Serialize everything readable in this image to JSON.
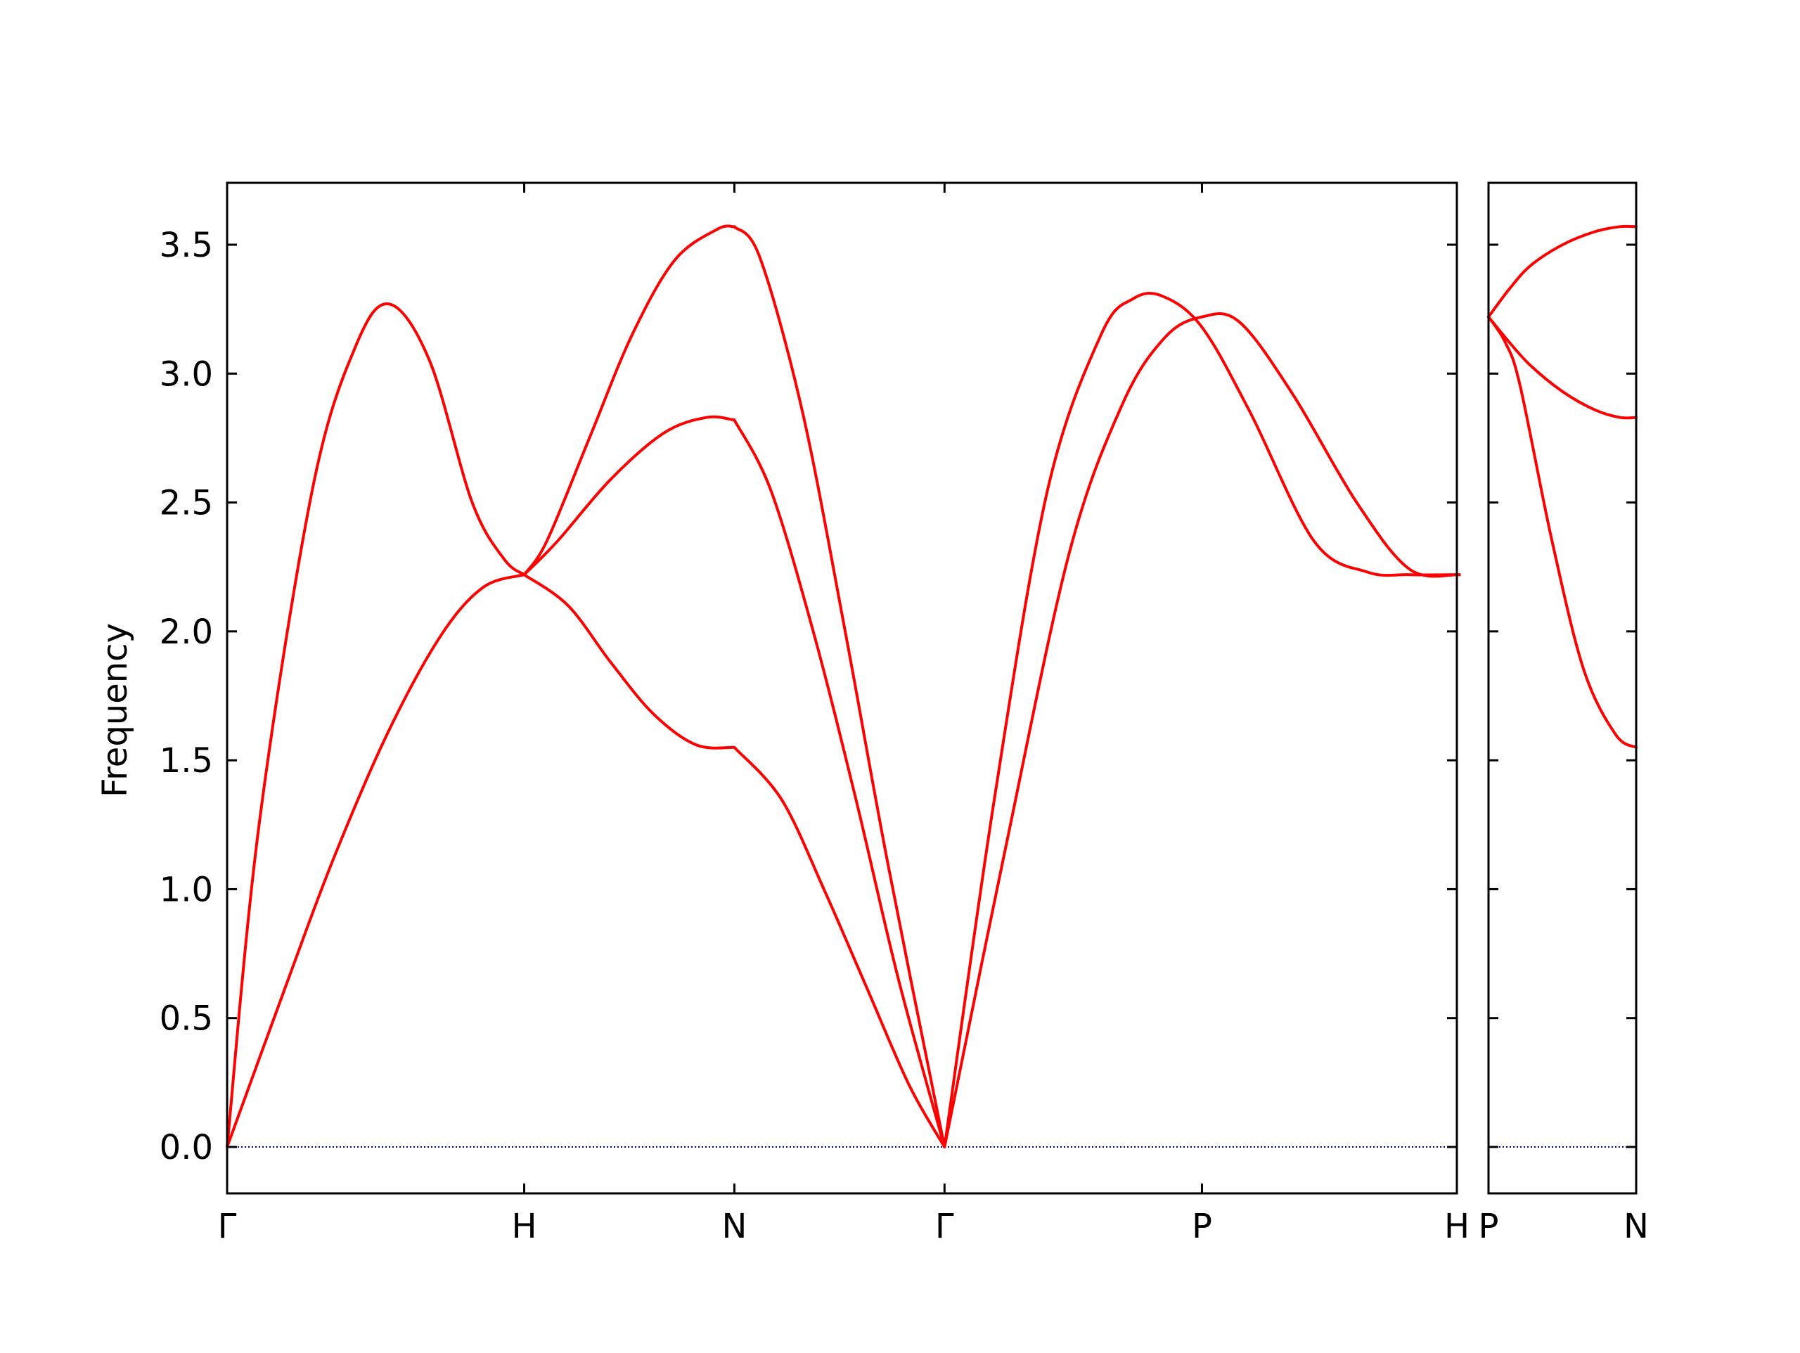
{
  "chart_data": {
    "type": "line",
    "title": "",
    "ylabel": "Frequency",
    "xlabel": "",
    "ylim": [
      -0.18,
      3.74
    ],
    "yticks": [
      0.0,
      0.5,
      1.0,
      1.5,
      2.0,
      2.5,
      3.0,
      3.5
    ],
    "ytick_labels": [
      "0.0",
      "0.5",
      "1.0",
      "1.5",
      "2.0",
      "2.5",
      "3.0",
      "3.5"
    ],
    "grid": false,
    "line_color": "#ff0000",
    "zero_line_color": "#00008b",
    "panels": [
      {
        "xlim": [
          0,
          5.77
        ],
        "xticks": [
          0,
          1.394,
          2.38,
          3.366,
          4.574,
          5.782
        ],
        "xtick_labels": [
          "Γ",
          "H",
          "N",
          "Γ",
          "P",
          "H"
        ],
        "series": [
          {
            "x": [
              0,
              0.3,
              0.5,
              0.75,
              1.0,
              1.2,
              1.394
            ],
            "values": [
              0.0,
              0.68,
              1.12,
              1.6,
              1.98,
              2.17,
              2.22
            ]
          },
          {
            "x": [
              0,
              0.15,
              0.4,
              0.6,
              0.76,
              0.95,
              1.15,
              1.3,
              1.394
            ],
            "values": [
              0.0,
              1.25,
              2.55,
              3.1,
              3.27,
              3.05,
              2.5,
              2.28,
              2.22
            ]
          },
          {
            "x": [
              1.394,
              1.6,
              1.8,
              2.0,
              2.2,
              2.38
            ],
            "values": [
              2.22,
              2.1,
              1.88,
              1.68,
              1.56,
              1.55
            ]
          },
          {
            "x": [
              1.394,
              1.55,
              1.8,
              2.05,
              2.25,
              2.38
            ],
            "values": [
              2.22,
              2.35,
              2.59,
              2.77,
              2.83,
              2.82
            ]
          },
          {
            "x": [
              1.394,
              1.5,
              1.7,
              1.9,
              2.1,
              2.3,
              2.38
            ],
            "values": [
              2.22,
              2.35,
              2.75,
              3.15,
              3.44,
              3.56,
              3.57
            ]
          },
          {
            "x": [
              2.38,
              2.6,
              2.8,
              3.0,
              3.2,
              3.366
            ],
            "values": [
              1.55,
              1.35,
              1.0,
              0.62,
              0.24,
              0.0
            ]
          },
          {
            "x": [
              2.38,
              2.55,
              2.75,
              2.95,
              3.15,
              3.366
            ],
            "values": [
              2.82,
              2.55,
              2.0,
              1.35,
              0.65,
              0.0
            ]
          },
          {
            "x": [
              2.38,
              2.5,
              2.7,
              2.9,
              3.1,
              3.366
            ],
            "values": [
              3.57,
              3.45,
              2.85,
              2.0,
              1.1,
              0.0
            ]
          },
          {
            "x": [
              3.366,
              3.65,
              3.95,
              4.2,
              4.4,
              4.574,
              4.75,
              5.0,
              5.3,
              5.55,
              5.782
            ],
            "values": [
              0.0,
              1.15,
              2.3,
              2.88,
              3.14,
              3.22,
              3.2,
              2.92,
              2.5,
              2.24,
              2.22
            ]
          },
          {
            "x": [
              3.366,
              3.6,
              3.85,
              4.1,
              4.25,
              4.39,
              4.574,
              4.8,
              5.1,
              5.35,
              5.55,
              5.782
            ],
            "values": [
              0.0,
              1.35,
              2.55,
              3.15,
              3.29,
              3.3,
              3.18,
              2.85,
              2.35,
              2.23,
              2.22,
              2.22
            ]
          }
        ]
      },
      {
        "xlim": [
          0,
          0.697
        ],
        "xticks": [
          0,
          0.697
        ],
        "xtick_labels": [
          "P",
          "N"
        ],
        "series": [
          {
            "x": [
              0,
              0.1,
              0.2,
              0.35,
              0.5,
              0.62,
              0.697
            ],
            "values": [
              3.22,
              3.33,
              3.42,
              3.5,
              3.55,
              3.57,
              3.57
            ]
          },
          {
            "x": [
              0,
              0.1,
              0.2,
              0.35,
              0.5,
              0.62,
              0.697
            ],
            "values": [
              3.22,
              3.12,
              3.03,
              2.93,
              2.86,
              2.83,
              2.83
            ]
          },
          {
            "x": [
              0,
              0.08,
              0.15,
              0.3,
              0.45,
              0.6,
              0.697
            ],
            "values": [
              3.22,
              3.12,
              2.95,
              2.35,
              1.85,
              1.6,
              1.55
            ]
          }
        ]
      }
    ]
  }
}
